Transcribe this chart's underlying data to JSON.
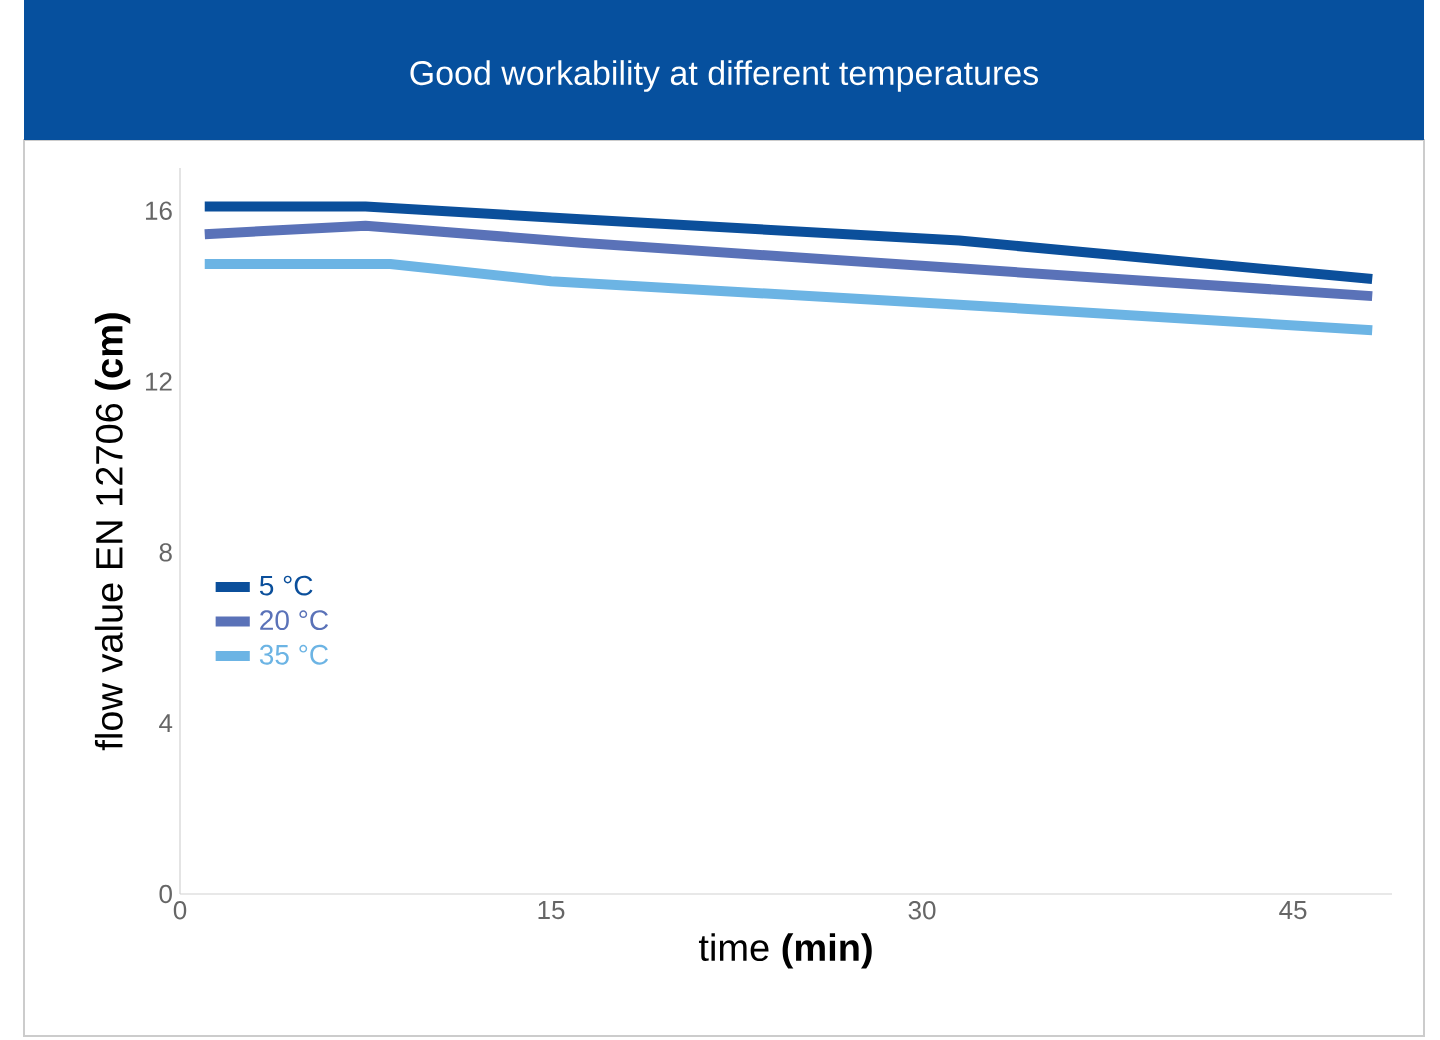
{
  "chart_data": {
    "type": "line",
    "title": "Good workability at different temperatures",
    "xlabel": "time **(min)**",
    "ylabel": "flow value EN 12706 **(cm)**",
    "xlim": [
      0,
      49
    ],
    "ylim": [
      0,
      17
    ],
    "xticks": [
      0,
      15,
      30,
      45
    ],
    "yticks": [
      0,
      4,
      8,
      12,
      16
    ],
    "grid": false,
    "legend": "left",
    "marker": "none",
    "line_style": "solid",
    "series": [
      {
        "name": "5 °C",
        "color": "#0b4f9b",
        "x": [
          1,
          7.5,
          16.2,
          31.5,
          38,
          48.2
        ],
        "values": [
          16.1,
          16.1,
          15.8,
          15.3,
          14.95,
          14.4
        ]
      },
      {
        "name": "20 °C",
        "color": "#5a72b8",
        "x": [
          1,
          7.5,
          16.2,
          31.5,
          48.2
        ],
        "values": [
          15.45,
          15.65,
          15.25,
          14.65,
          14.0
        ]
      },
      {
        "name": "35 °C",
        "color": "#6cb4e4",
        "x": [
          1,
          8.5,
          15,
          31.5,
          48.2
        ],
        "values": [
          14.75,
          14.75,
          14.35,
          13.8,
          13.2
        ]
      }
    ]
  }
}
